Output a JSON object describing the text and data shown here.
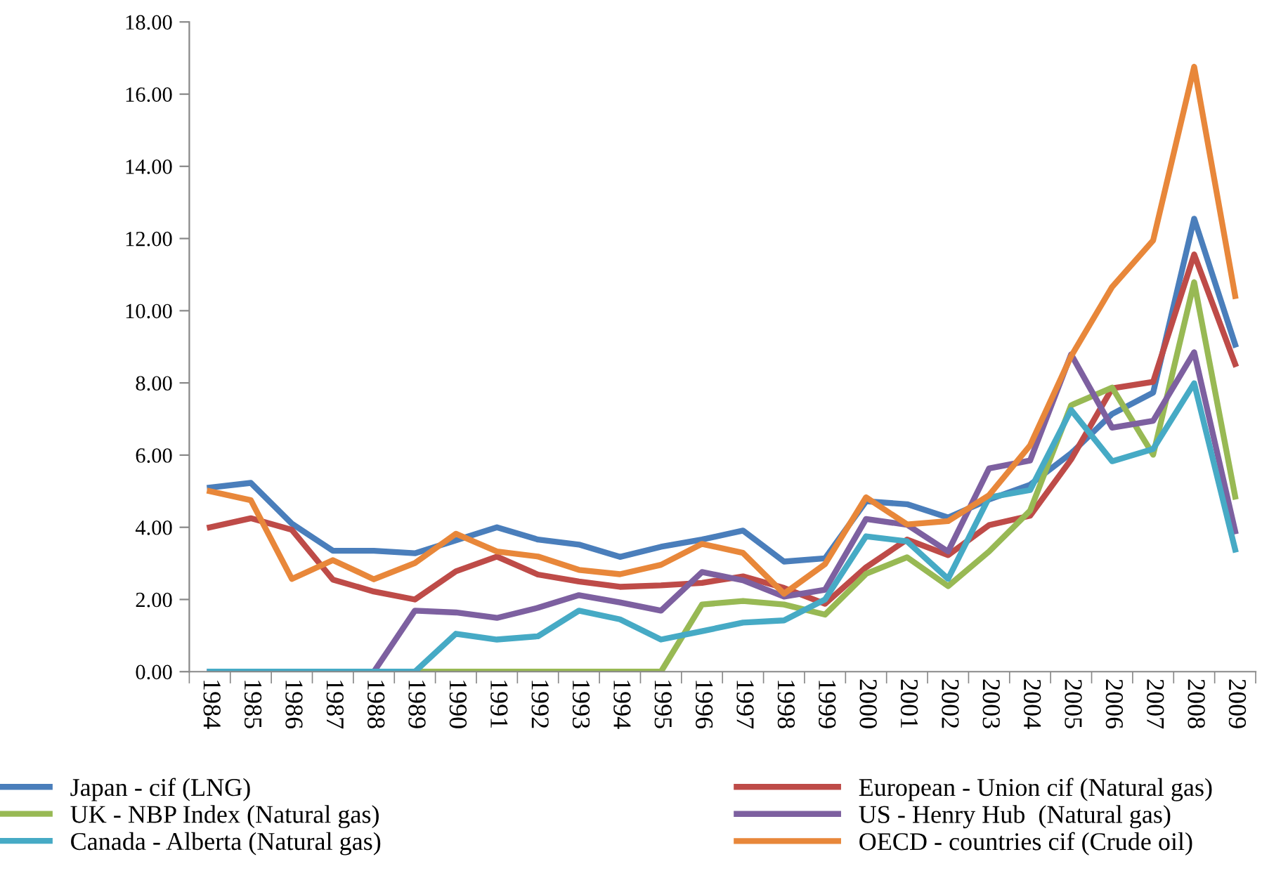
{
  "chart_data": {
    "type": "line",
    "categories": [
      "1984",
      "1985",
      "1986",
      "1987",
      "1988",
      "1989",
      "1990",
      "1991",
      "1992",
      "1993",
      "1994",
      "1995",
      "1996",
      "1997",
      "1998",
      "1999",
      "2000",
      "2001",
      "2002",
      "2003",
      "2004",
      "2005",
      "2006",
      "2007",
      "2008",
      "2009"
    ],
    "ylim": [
      0,
      18
    ],
    "yticks": [
      {
        "value": 0,
        "label": "0.00"
      },
      {
        "value": 2,
        "label": "2.00"
      },
      {
        "value": 4,
        "label": "4.00"
      },
      {
        "value": 6,
        "label": "6.00"
      },
      {
        "value": 8,
        "label": "8.00"
      },
      {
        "value": 10,
        "label": "10.00"
      },
      {
        "value": 12,
        "label": "12.00"
      },
      {
        "value": 14,
        "label": "14.00"
      },
      {
        "value": 16,
        "label": "16.00"
      },
      {
        "value": 18,
        "label": "18.00"
      }
    ],
    "grid": false,
    "legend": "bottom",
    "marker": "none",
    "line_style": "solid",
    "series": [
      {
        "name": "Japan - cif (LNG)",
        "color": "#4a7ebb",
        "values": [
          5.1,
          5.23,
          4.1,
          3.35,
          3.35,
          3.28,
          3.64,
          4.0,
          3.66,
          3.52,
          3.18,
          3.46,
          3.66,
          3.91,
          3.05,
          3.14,
          4.72,
          4.64,
          4.27,
          4.77,
          5.18,
          6.05,
          7.14,
          7.73,
          12.55,
          9.06
        ]
      },
      {
        "name": "European - Union cif (Natural gas)",
        "color": "#be4b48",
        "values": [
          4.0,
          4.25,
          3.93,
          2.55,
          2.22,
          2.0,
          2.78,
          3.19,
          2.69,
          2.5,
          2.35,
          2.39,
          2.46,
          2.64,
          2.32,
          1.88,
          2.89,
          3.66,
          3.23,
          4.06,
          4.32,
          5.88,
          7.85,
          8.03,
          11.56,
          8.52
        ]
      },
      {
        "name": "UK - NBP Index (Natural gas)",
        "color": "#98b954",
        "values": [
          null,
          null,
          null,
          null,
          0,
          0,
          0,
          0,
          0,
          0,
          0,
          0,
          1.86,
          1.96,
          1.86,
          1.58,
          2.71,
          3.17,
          2.37,
          3.33,
          4.46,
          7.38,
          7.87,
          6.01,
          10.79,
          4.85
        ]
      },
      {
        "name": "US - Henry Hub  (Natural gas)",
        "color": "#7d60a0",
        "values": [
          0,
          0,
          0,
          0,
          0,
          1.69,
          1.64,
          1.49,
          1.77,
          2.12,
          1.92,
          1.69,
          2.76,
          2.53,
          2.08,
          2.27,
          4.23,
          4.07,
          3.33,
          5.63,
          5.85,
          8.79,
          6.76,
          6.95,
          8.85,
          3.89
        ]
      },
      {
        "name": "Canada - Alberta (Natural gas)",
        "color": "#46aac5",
        "values": [
          0,
          0,
          0,
          0,
          0,
          0,
          1.05,
          0.89,
          0.98,
          1.69,
          1.45,
          0.89,
          1.12,
          1.36,
          1.42,
          2.0,
          3.75,
          3.61,
          2.57,
          4.83,
          5.03,
          7.25,
          5.83,
          6.17,
          7.99,
          3.38
        ]
      },
      {
        "name": "OECD - countries cif (Crude oil)",
        "color": "#e8873a",
        "values": [
          5.0,
          4.75,
          2.57,
          3.09,
          2.56,
          3.01,
          3.82,
          3.33,
          3.19,
          2.82,
          2.7,
          2.96,
          3.54,
          3.29,
          2.16,
          2.98,
          4.83,
          4.08,
          4.17,
          4.89,
          6.27,
          8.74,
          10.66,
          11.95,
          16.76,
          10.41
        ]
      }
    ]
  }
}
